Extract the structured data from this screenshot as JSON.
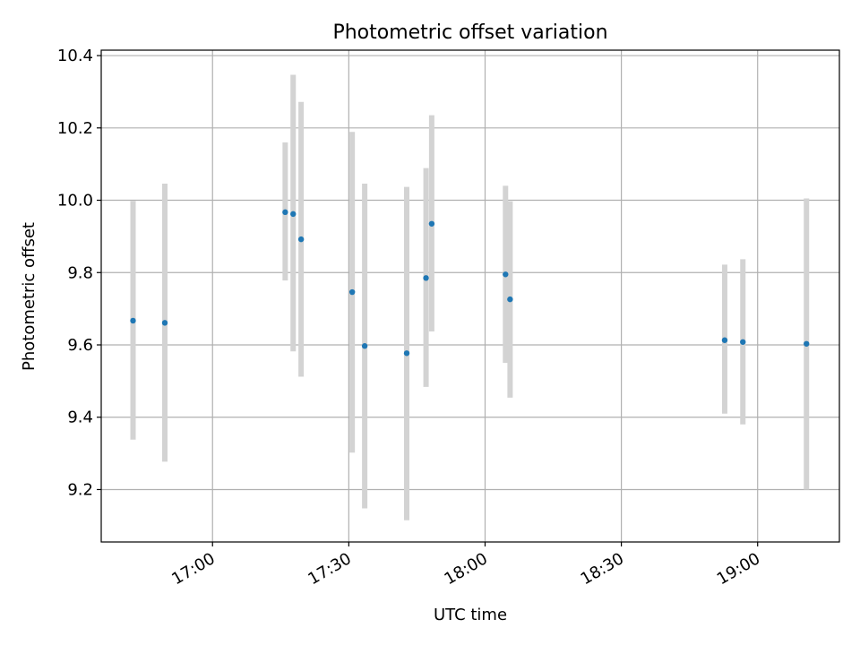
{
  "chart_data": {
    "type": "scatter",
    "title": "Photometric offset variation",
    "xlabel": "UTC time",
    "ylabel": "Photometric offset",
    "x_tick_labels": [
      "17:00",
      "17:30",
      "18:00",
      "18:30",
      "19:00"
    ],
    "y_tick_labels": [
      "9.2",
      "9.4",
      "9.6",
      "9.8",
      "10.0",
      "10.2",
      "10.4"
    ],
    "x_ticks": [
      "17:00",
      "17:30",
      "18:00",
      "18:30",
      "19:00"
    ],
    "y_ticks": [
      9.2,
      9.4,
      9.6,
      9.8,
      10.0,
      10.2,
      10.4
    ],
    "xlim": [
      "16:35:30",
      "19:18:00"
    ],
    "ylim": [
      9.055,
      10.415
    ],
    "grid": true,
    "marker_color": "#1f77b4",
    "errorbar_color": "#d3d3d3",
    "series": [
      {
        "points": [
          {
            "x": "16:42:30",
            "y": 9.667,
            "lo": 9.338,
            "hi": 9.998
          },
          {
            "x": "16:49:30",
            "y": 9.661,
            "lo": 9.277,
            "hi": 10.046
          },
          {
            "x": "17:16:00",
            "y": 9.967,
            "lo": 9.778,
            "hi": 10.16
          },
          {
            "x": "17:17:45",
            "y": 9.962,
            "lo": 9.582,
            "hi": 10.347
          },
          {
            "x": "17:19:30",
            "y": 9.892,
            "lo": 9.512,
            "hi": 10.272
          },
          {
            "x": "17:30:45",
            "y": 9.746,
            "lo": 9.302,
            "hi": 10.189
          },
          {
            "x": "17:33:30",
            "y": 9.597,
            "lo": 9.148,
            "hi": 10.046
          },
          {
            "x": "17:42:45",
            "y": 9.577,
            "lo": 9.115,
            "hi": 10.037
          },
          {
            "x": "17:47:00",
            "y": 9.785,
            "lo": 9.484,
            "hi": 10.089
          },
          {
            "x": "17:48:15",
            "y": 9.935,
            "lo": 9.637,
            "hi": 10.235
          },
          {
            "x": "18:04:30",
            "y": 9.795,
            "lo": 9.55,
            "hi": 10.04
          },
          {
            "x": "18:05:30",
            "y": 9.726,
            "lo": 9.454,
            "hi": 9.997
          },
          {
            "x": "18:52:45",
            "y": 9.613,
            "lo": 9.41,
            "hi": 9.822
          },
          {
            "x": "18:56:45",
            "y": 9.608,
            "lo": 9.38,
            "hi": 9.837
          },
          {
            "x": "19:10:45",
            "y": 9.603,
            "lo": 9.2,
            "hi": 10.005
          }
        ]
      }
    ]
  }
}
